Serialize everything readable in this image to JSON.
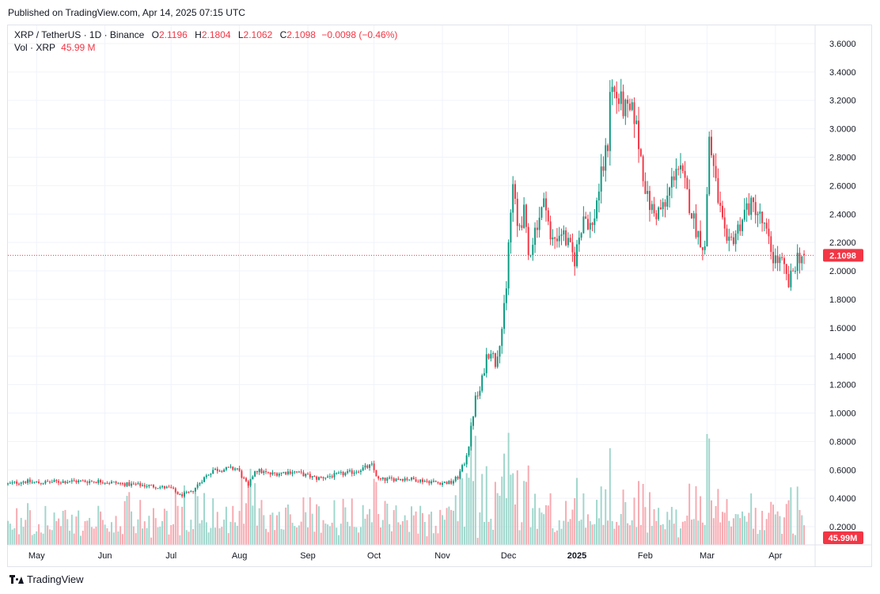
{
  "header": {
    "published": "Published on TradingView.com, Apr 14, 2025 07:15 UTC"
  },
  "legend": {
    "symbol": "XRP / TetherUS · 1D · Binance",
    "o_label": "O",
    "o_value": "2.1196",
    "h_label": "H",
    "h_value": "2.1804",
    "l_label": "L",
    "l_value": "2.1062",
    "c_label": "C",
    "c_value": "2.1098",
    "change": "−0.0098 (−0.46%)",
    "vol_label": "Vol · XRP",
    "vol_value": "45.99 M"
  },
  "footer": {
    "brand": "TradingView"
  },
  "colors": {
    "up": "#089981",
    "down": "#f23645",
    "up_vol": "#9fd6cc",
    "down_vol": "#f7a9b0",
    "grid": "#f0f3fa",
    "text": "#131722"
  },
  "chart_data": {
    "type": "candlestick",
    "symbol": "XRP / TetherUS",
    "interval": "1D",
    "exchange": "Binance",
    "y_ticks": [
      "3.6000",
      "3.4000",
      "3.2000",
      "3.0000",
      "2.8000",
      "2.6000",
      "2.4000",
      "2.2000",
      "2.0000",
      "1.8000",
      "1.6000",
      "1.4000",
      "1.2000",
      "1.0000",
      "0.8000",
      "0.6000",
      "0.4000",
      "0.2000"
    ],
    "ylim": [
      0.1,
      3.7
    ],
    "x_labels": [
      {
        "label": "May",
        "date": "2024-05-01"
      },
      {
        "label": "Jun",
        "date": "2024-06-01"
      },
      {
        "label": "Jul",
        "date": "2024-07-01"
      },
      {
        "label": "Aug",
        "date": "2024-08-01"
      },
      {
        "label": "Sep",
        "date": "2024-09-01"
      },
      {
        "label": "Oct",
        "date": "2024-10-01"
      },
      {
        "label": "Nov",
        "date": "2024-11-01"
      },
      {
        "label": "Dec",
        "date": "2024-12-01"
      },
      {
        "label": "2025",
        "date": "2025-01-01"
      },
      {
        "label": "Feb",
        "date": "2025-02-01"
      },
      {
        "label": "Mar",
        "date": "2025-03-01"
      },
      {
        "label": "Apr",
        "date": "2025-04-01"
      }
    ],
    "x_range": [
      "2024-04-18",
      "2025-04-19"
    ],
    "last_price": "2.1098",
    "last_volume": "45.99M",
    "close_path": [
      [
        "2024-04-18",
        0.5
      ],
      [
        "2024-04-25",
        0.52
      ],
      [
        "2024-05-02",
        0.51
      ],
      [
        "2024-05-15",
        0.52
      ],
      [
        "2024-05-30",
        0.52
      ],
      [
        "2024-06-10",
        0.5
      ],
      [
        "2024-06-20",
        0.49
      ],
      [
        "2024-07-01",
        0.47
      ],
      [
        "2024-07-05",
        0.42
      ],
      [
        "2024-07-10",
        0.44
      ],
      [
        "2024-07-15",
        0.53
      ],
      [
        "2024-07-20",
        0.6
      ],
      [
        "2024-07-31",
        0.61
      ],
      [
        "2024-08-05",
        0.48
      ],
      [
        "2024-08-08",
        0.6
      ],
      [
        "2024-08-15",
        0.57
      ],
      [
        "2024-08-25",
        0.59
      ],
      [
        "2024-09-05",
        0.54
      ],
      [
        "2024-09-20",
        0.58
      ],
      [
        "2024-09-30",
        0.63
      ],
      [
        "2024-10-03",
        0.53
      ],
      [
        "2024-10-15",
        0.54
      ],
      [
        "2024-10-31",
        0.51
      ],
      [
        "2024-11-05",
        0.51
      ],
      [
        "2024-11-08",
        0.55
      ],
      [
        "2024-11-11",
        0.65
      ],
      [
        "2024-11-13",
        0.78
      ],
      [
        "2024-11-16",
        1.1
      ],
      [
        "2024-11-18",
        1.15
      ],
      [
        "2024-11-21",
        1.4
      ],
      [
        "2024-11-23",
        1.45
      ],
      [
        "2024-11-25",
        1.35
      ],
      [
        "2024-11-28",
        1.6
      ],
      [
        "2024-11-30",
        1.85
      ],
      [
        "2024-12-01",
        2.2
      ],
      [
        "2024-12-03",
        2.6
      ],
      [
        "2024-12-05",
        2.3
      ],
      [
        "2024-12-08",
        2.4
      ],
      [
        "2024-12-10",
        2.1
      ],
      [
        "2024-12-14",
        2.35
      ],
      [
        "2024-12-18",
        2.5
      ],
      [
        "2024-12-20",
        2.2
      ],
      [
        "2024-12-25",
        2.28
      ],
      [
        "2024-12-31",
        2.08
      ],
      [
        "2025-01-04",
        2.4
      ],
      [
        "2025-01-08",
        2.3
      ],
      [
        "2025-01-10",
        2.5
      ],
      [
        "2025-01-15",
        2.9
      ],
      [
        "2025-01-16",
        3.3
      ],
      [
        "2025-01-20",
        3.2
      ],
      [
        "2025-01-24",
        3.1
      ],
      [
        "2025-01-27",
        3.1
      ],
      [
        "2025-01-31",
        2.7
      ],
      [
        "2025-02-02",
        2.5
      ],
      [
        "2025-02-05",
        2.4
      ],
      [
        "2025-02-10",
        2.45
      ],
      [
        "2025-02-15",
        2.75
      ],
      [
        "2025-02-18",
        2.65
      ],
      [
        "2025-02-24",
        2.3
      ],
      [
        "2025-02-28",
        2.15
      ],
      [
        "2025-03-02",
        2.95
      ],
      [
        "2025-03-05",
        2.6
      ],
      [
        "2025-03-10",
        2.15
      ],
      [
        "2025-03-15",
        2.3
      ],
      [
        "2025-03-19",
        2.45
      ],
      [
        "2025-03-23",
        2.45
      ],
      [
        "2025-03-27",
        2.3
      ],
      [
        "2025-03-31",
        2.1
      ],
      [
        "2025-04-04",
        2.05
      ],
      [
        "2025-04-07",
        1.9
      ],
      [
        "2025-04-09",
        2.0
      ],
      [
        "2025-04-11",
        2.1
      ],
      [
        "2025-04-14",
        2.11
      ]
    ]
  }
}
